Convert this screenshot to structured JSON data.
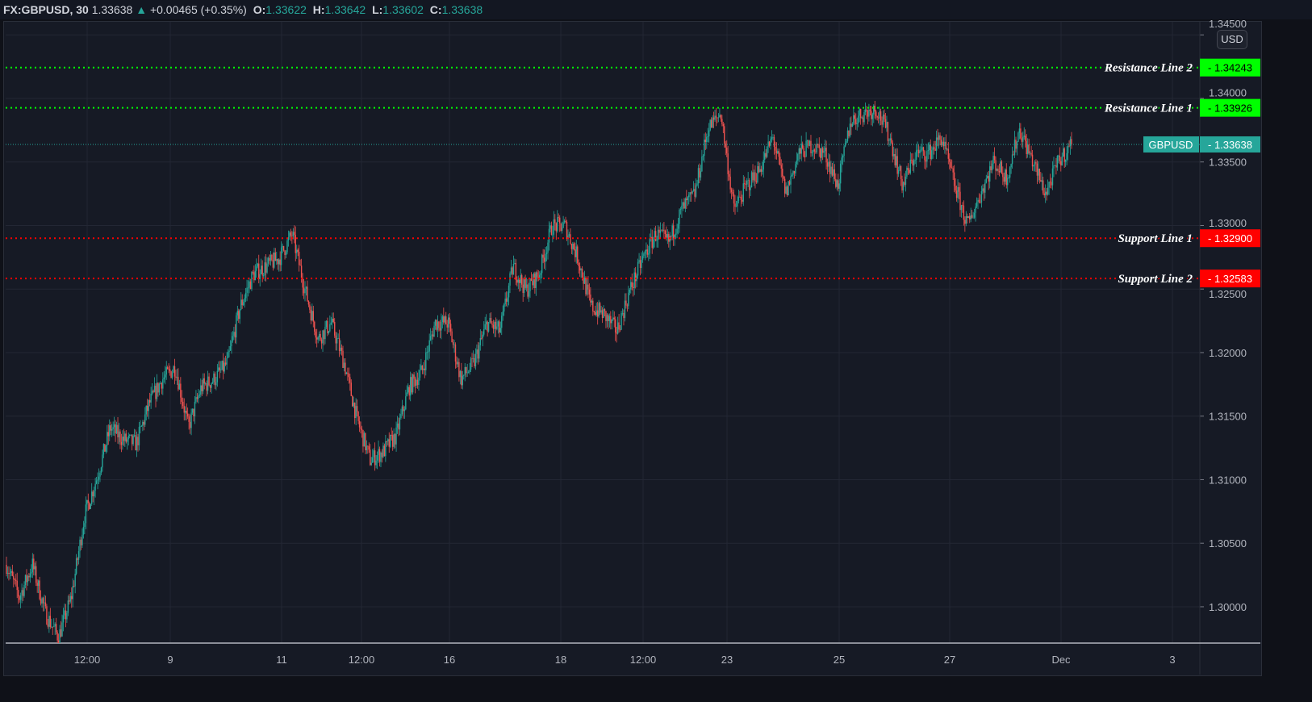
{
  "header": {
    "symbol": "FX:GBPUSD, 30",
    "last": "1.33638",
    "change": "+0.00465 (+0.35%)",
    "o_label": "O:",
    "o": "1.33622",
    "h_label": "H:",
    "h": "1.33642",
    "l_label": "L:",
    "l": "1.33602",
    "c_label": "C:",
    "c": "1.33638",
    "up_icon": "triangle-up-icon"
  },
  "currency_button": "USD",
  "colors": {
    "up": "#26a69a",
    "down": "#ef5350",
    "resistance": "#00ff00",
    "support": "#ff0000",
    "background": "#161a25",
    "grid": "#232734"
  },
  "chart_data": {
    "type": "candlestick",
    "symbol": "GBPUSD",
    "interval": "30",
    "ylim": [
      1.29714,
      1.34603
    ],
    "grid": true,
    "y_ticks": [
      "1.30000",
      "1.30500",
      "1.31000",
      "1.31500",
      "1.32000",
      "1.32500",
      "1.33000",
      "1.33500",
      "1.34000",
      "1.34500"
    ],
    "x_ticks": [
      "12:00",
      "9",
      "11",
      "12:00",
      "16",
      "18",
      "12:00",
      "23",
      "25",
      "27",
      "Dec",
      "3"
    ],
    "approx_close_path": [
      1.3033,
      1.30076,
      1.3033,
      1.29949,
      1.29759,
      1.30076,
      1.30711,
      1.31029,
      1.3141,
      1.31314,
      1.31283,
      1.316,
      1.3179,
      1.31886,
      1.3141,
      1.31727,
      1.3179,
      1.31917,
      1.32362,
      1.32616,
      1.32679,
      1.32743,
      1.32933,
      1.32489,
      1.32108,
      1.32235,
      1.31917,
      1.31473,
      1.31156,
      1.31219,
      1.31346,
      1.31727,
      1.31854,
      1.32235,
      1.32235,
      1.3179,
      1.31917,
      1.32235,
      1.32171,
      1.32679,
      1.32489,
      1.32616,
      1.32997,
      1.32997,
      1.32743,
      1.32362,
      1.32298,
      1.32171,
      1.32489,
      1.32743,
      1.32933,
      1.3287,
      1.33124,
      1.33251,
      1.33759,
      1.33886,
      1.33124,
      1.33314,
      1.33441,
      1.33695,
      1.33251,
      1.33568,
      1.33632,
      1.33568,
      1.33314,
      1.33822,
      1.33886,
      1.33917,
      1.33695,
      1.33314,
      1.33568,
      1.33568,
      1.33695,
      1.33314,
      1.32997,
      1.33251,
      1.33505,
      1.33378,
      1.33759,
      1.33505,
      1.33251,
      1.33505,
      1.33638
    ],
    "current_price": {
      "label": "GBPUSD",
      "value": "1.33638",
      "price": 1.33638
    },
    "horizontal_lines": [
      {
        "label": "Resistance Line 2",
        "value": "1.34243",
        "price": 1.34243,
        "kind": "resistance"
      },
      {
        "label": "Resistance Line 1",
        "value": "1.33926",
        "price": 1.33926,
        "kind": "resistance"
      },
      {
        "label": "Support Line 1",
        "value": "1.32900",
        "price": 1.329,
        "kind": "support"
      },
      {
        "label": "Support Line 2",
        "value": "1.32583",
        "price": 1.32583,
        "kind": "support"
      }
    ]
  }
}
